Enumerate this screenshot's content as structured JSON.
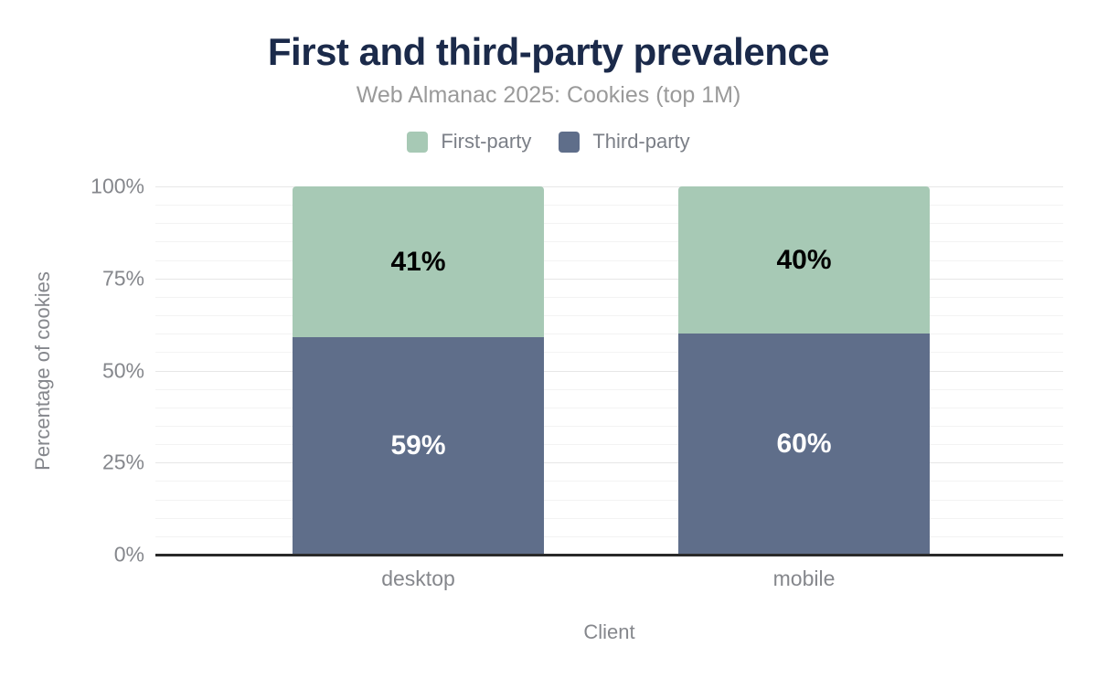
{
  "chart_data": {
    "type": "bar",
    "stacked": true,
    "title": "First and third-party prevalence",
    "subtitle": "Web Almanac 2025: Cookies (top 1M)",
    "xlabel": "Client",
    "ylabel": "Percentage of cookies",
    "categories": [
      "desktop",
      "mobile"
    ],
    "series": [
      {
        "name": "First-party",
        "values": [
          41,
          40
        ],
        "labels": [
          "41%",
          "40%"
        ],
        "color": "#a7c9b5",
        "label_color": "#000000",
        "stack_order": "top"
      },
      {
        "name": "Third-party",
        "values": [
          59,
          60
        ],
        "labels": [
          "59%",
          "60%"
        ],
        "color": "#5f6e8a",
        "label_color": "#ffffff",
        "stack_order": "bottom"
      }
    ],
    "ylim": [
      0,
      100
    ],
    "yticks": [
      {
        "value": 0,
        "label": "0%"
      },
      {
        "value": 25,
        "label": "25%"
      },
      {
        "value": 50,
        "label": "50%"
      },
      {
        "value": 75,
        "label": "75%"
      },
      {
        "value": 100,
        "label": "100%"
      }
    ],
    "grid": {
      "on": true,
      "minor_step": 5,
      "major_step": 25
    },
    "legend_position": "top"
  },
  "colors": {
    "title": "#1b2a4a",
    "subtitle": "#9a9a9a",
    "legend_text": "#7b7f87",
    "axis_text": "#85878c",
    "axis_line": "#2a2a2a",
    "grid_minor": "#f3f3f3",
    "grid_major": "#e7e7e7",
    "background": "#ffffff"
  }
}
